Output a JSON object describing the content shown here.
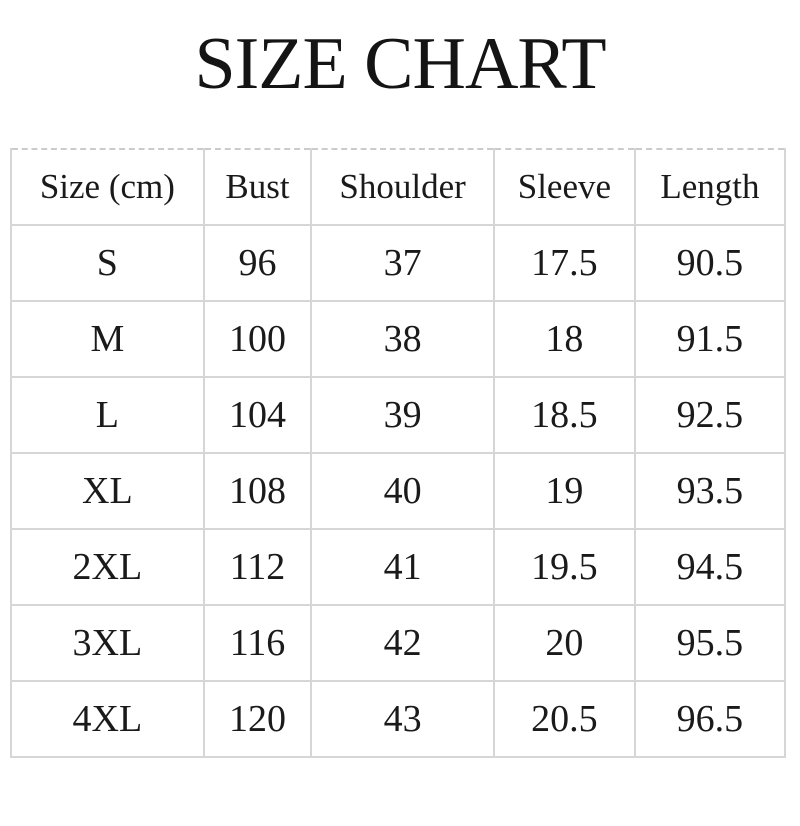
{
  "chart_data": {
    "type": "table",
    "title": "SIZE CHART",
    "columns": [
      "Size (cm)",
      "Bust",
      "Shoulder",
      "Sleeve",
      "Length"
    ],
    "rows": [
      [
        "S",
        "96",
        "37",
        "17.5",
        "90.5"
      ],
      [
        "M",
        "100",
        "38",
        "18",
        "91.5"
      ],
      [
        "L",
        "104",
        "39",
        "18.5",
        "92.5"
      ],
      [
        "XL",
        "108",
        "40",
        "19",
        "93.5"
      ],
      [
        "2XL",
        "112",
        "41",
        "19.5",
        "94.5"
      ],
      [
        "3XL",
        "116",
        "42",
        "20",
        "95.5"
      ],
      [
        "4XL",
        "120",
        "43",
        "20.5",
        "96.5"
      ]
    ],
    "layout": {
      "grid": "full-borders",
      "top_border_style": "dashed"
    }
  },
  "colors": {
    "background": "#ffffff",
    "text": "#1a1a1a",
    "border": "#d6d6d6"
  }
}
